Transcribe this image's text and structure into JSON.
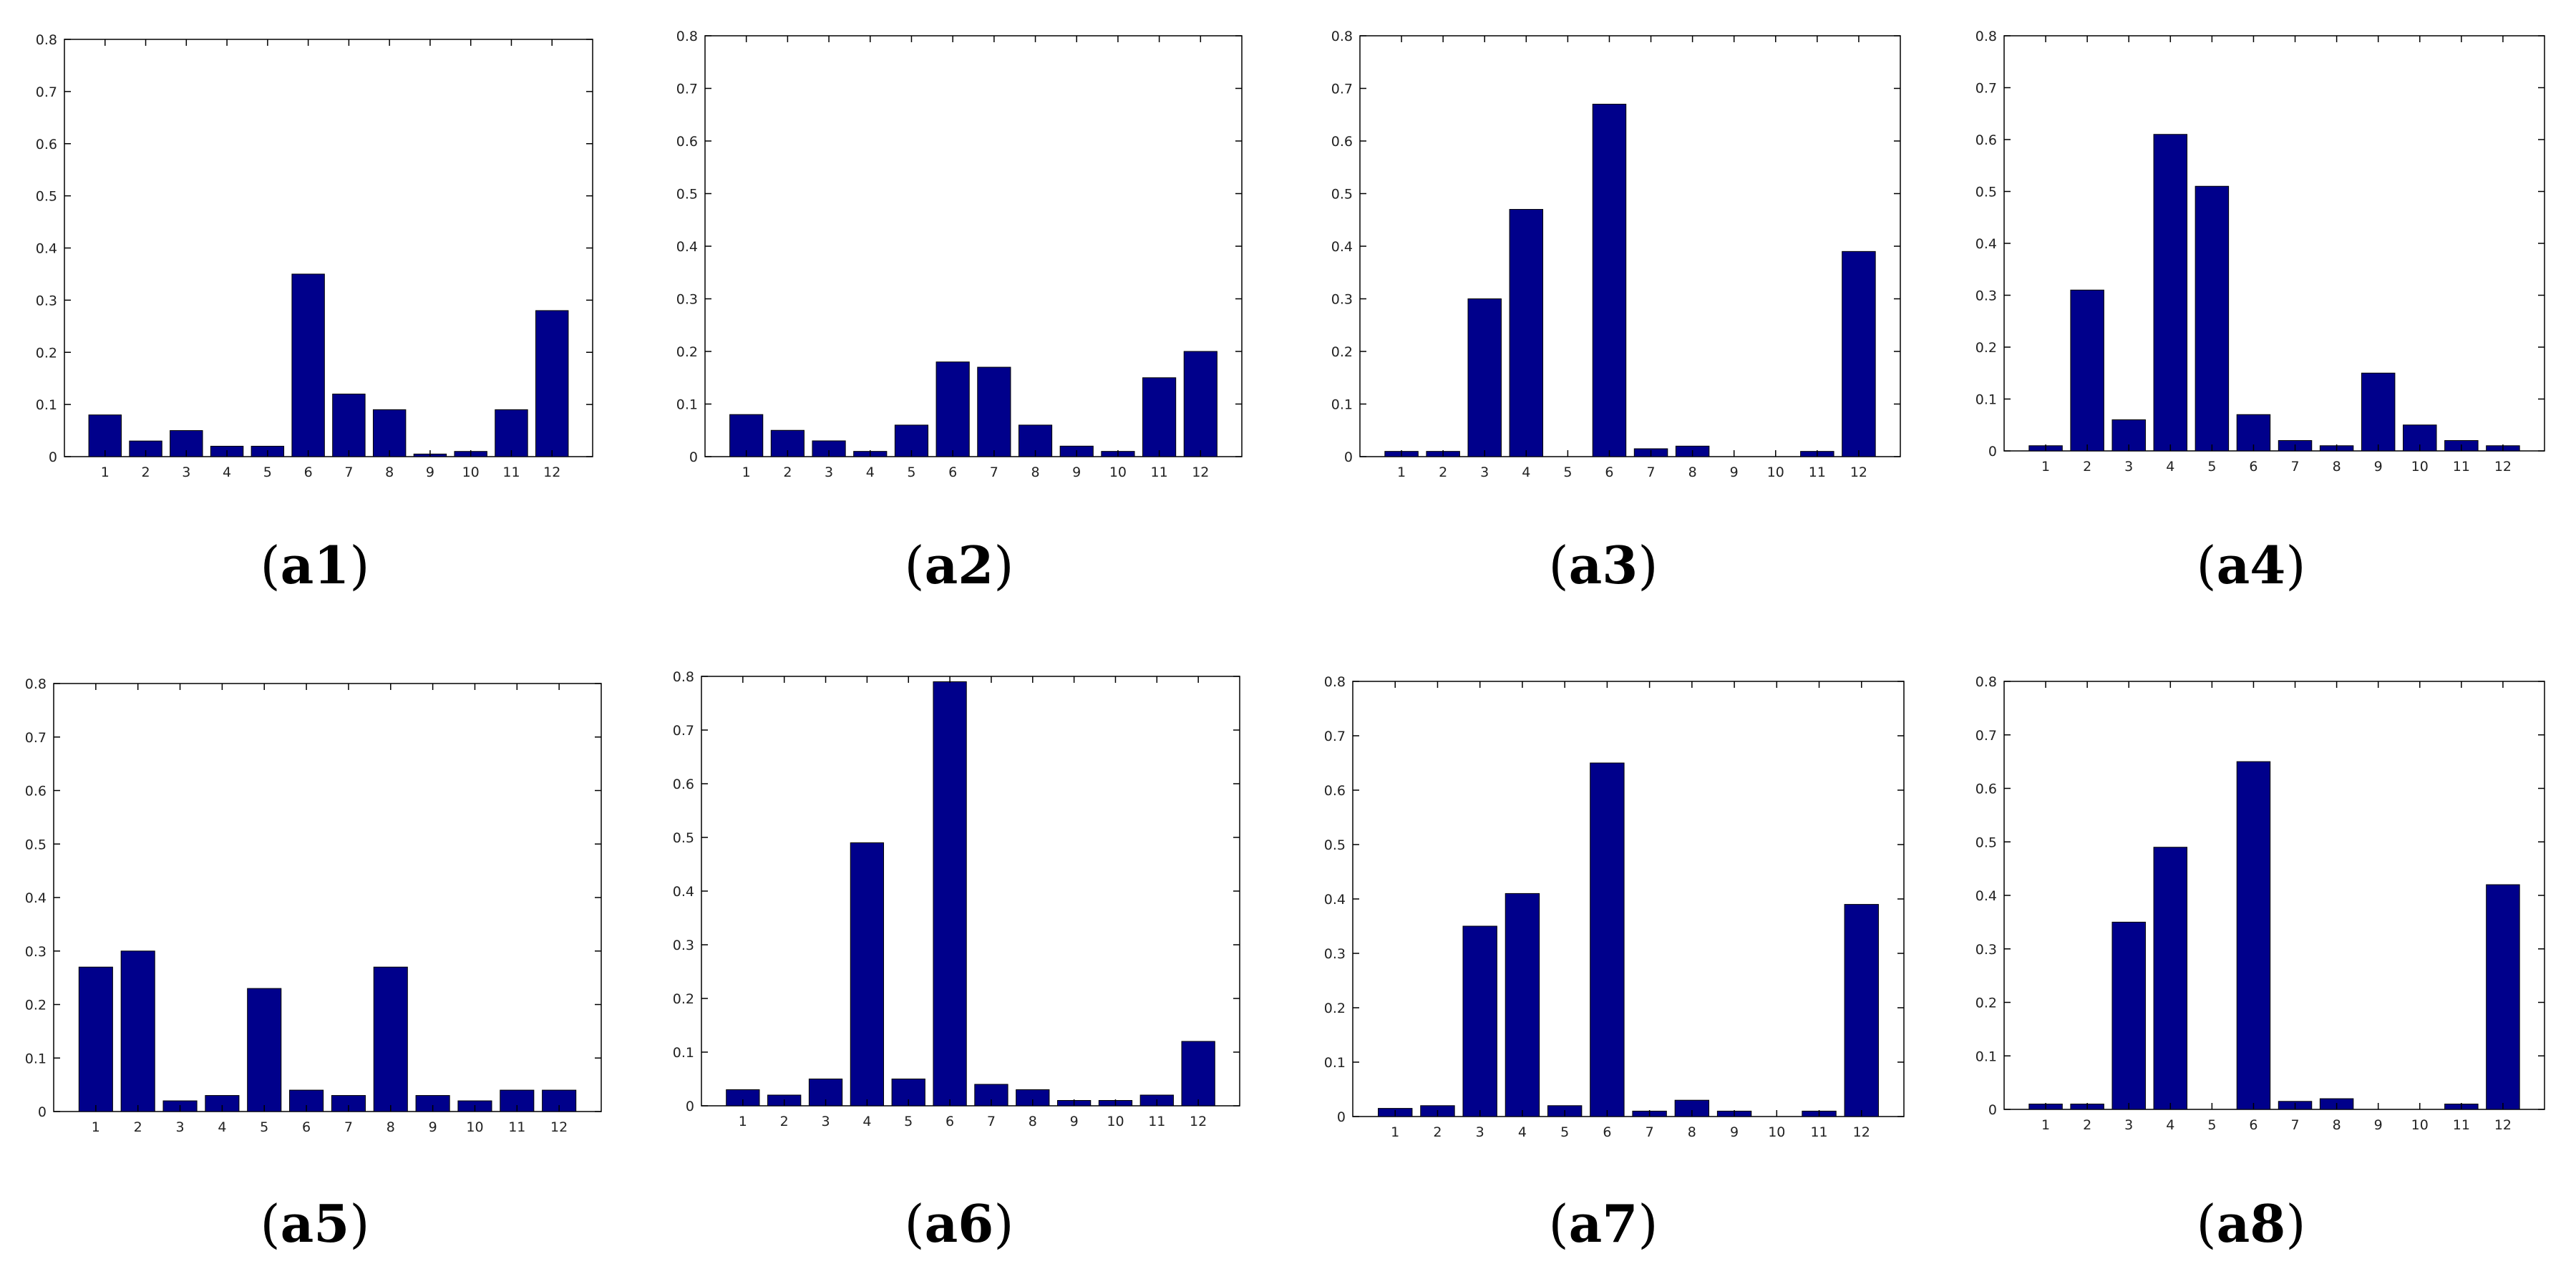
{
  "panels": [
    {
      "label": "a1",
      "chart_data": {
        "type": "bar",
        "categories": [
          "1",
          "2",
          "3",
          "4",
          "5",
          "6",
          "7",
          "8",
          "9",
          "10",
          "11",
          "12"
        ],
        "values": [
          0.08,
          0.03,
          0.05,
          0.02,
          0.02,
          0.35,
          0.12,
          0.09,
          0.005,
          0.01,
          0.09,
          0.28
        ],
        "ylim": [
          0,
          0.8
        ],
        "yticks": [
          "0",
          "0.1",
          "0.2",
          "0.3",
          "0.4",
          "0.5",
          "0.6",
          "0.7",
          "0.8"
        ],
        "bar_color": "#00008b",
        "grid": false
      }
    },
    {
      "label": "a2",
      "chart_data": {
        "type": "bar",
        "categories": [
          "1",
          "2",
          "3",
          "4",
          "5",
          "6",
          "7",
          "8",
          "9",
          "10",
          "11",
          "12"
        ],
        "values": [
          0.08,
          0.05,
          0.03,
          0.01,
          0.06,
          0.18,
          0.17,
          0.06,
          0.02,
          0.01,
          0.15,
          0.2
        ],
        "ylim": [
          0,
          0.8
        ],
        "yticks": [
          "0",
          "0.1",
          "0.2",
          "0.3",
          "0.4",
          "0.5",
          "0.6",
          "0.7",
          "0.8"
        ],
        "bar_color": "#00008b",
        "grid": false
      }
    },
    {
      "label": "a3",
      "chart_data": {
        "type": "bar",
        "categories": [
          "1",
          "2",
          "3",
          "4",
          "5",
          "6",
          "7",
          "8",
          "9",
          "10",
          "11",
          "12"
        ],
        "values": [
          0.01,
          0.01,
          0.3,
          0.47,
          0,
          0.67,
          0.015,
          0.02,
          0,
          0,
          0.01,
          0.39
        ],
        "ylim": [
          0,
          0.8
        ],
        "yticks": [
          "0",
          "0.1",
          "0.2",
          "0.3",
          "0.4",
          "0.5",
          "0.6",
          "0.7",
          "0.8"
        ],
        "bar_color": "#00008b",
        "grid": false
      }
    },
    {
      "label": "a4",
      "chart_data": {
        "type": "bar",
        "categories": [
          "1",
          "2",
          "3",
          "4",
          "5",
          "6",
          "7",
          "8",
          "9",
          "10",
          "11",
          "12"
        ],
        "values": [
          0.01,
          0.31,
          0.06,
          0.61,
          0.51,
          0.07,
          0.02,
          0.01,
          0.15,
          0.05,
          0.02,
          0.01
        ],
        "ylim": [
          0,
          0.8
        ],
        "yticks": [
          "0",
          "0.1",
          "0.2",
          "0.3",
          "0.4",
          "0.5",
          "0.6",
          "0.7",
          "0.8"
        ],
        "bar_color": "#00008b",
        "grid": false
      }
    },
    {
      "label": "a5",
      "chart_data": {
        "type": "bar",
        "categories": [
          "1",
          "2",
          "3",
          "4",
          "5",
          "6",
          "7",
          "8",
          "9",
          "10",
          "11",
          "12"
        ],
        "values": [
          0.27,
          0.3,
          0.02,
          0.03,
          0.23,
          0.04,
          0.03,
          0.27,
          0.03,
          0.02,
          0.04,
          0.04
        ],
        "ylim": [
          0,
          0.8
        ],
        "yticks": [
          "0",
          "0.1",
          "0.2",
          "0.3",
          "0.4",
          "0.5",
          "0.6",
          "0.7",
          "0.8"
        ],
        "bar_color": "#00008b",
        "grid": false
      }
    },
    {
      "label": "a6",
      "chart_data": {
        "type": "bar",
        "categories": [
          "1",
          "2",
          "3",
          "4",
          "5",
          "6",
          "7",
          "8",
          "9",
          "10",
          "11",
          "12"
        ],
        "values": [
          0.03,
          0.02,
          0.05,
          0.49,
          0.05,
          0.79,
          0.04,
          0.03,
          0.01,
          0.01,
          0.02,
          0.12
        ],
        "ylim": [
          0,
          0.8
        ],
        "yticks": [
          "0",
          "0.1",
          "0.2",
          "0.3",
          "0.4",
          "0.5",
          "0.6",
          "0.7",
          "0.8"
        ],
        "bar_color": "#00008b",
        "grid": false
      }
    },
    {
      "label": "a7",
      "chart_data": {
        "type": "bar",
        "categories": [
          "1",
          "2",
          "3",
          "4",
          "5",
          "6",
          "7",
          "8",
          "9",
          "10",
          "11",
          "12"
        ],
        "values": [
          0.015,
          0.02,
          0.35,
          0.41,
          0.02,
          0.65,
          0.01,
          0.03,
          0.01,
          0,
          0.01,
          0.39
        ],
        "ylim": [
          0,
          0.8
        ],
        "yticks": [
          "0",
          "0.1",
          "0.2",
          "0.3",
          "0.4",
          "0.5",
          "0.6",
          "0.7",
          "0.8"
        ],
        "bar_color": "#00008b",
        "grid": false
      }
    },
    {
      "label": "a8",
      "chart_data": {
        "type": "bar",
        "categories": [
          "1",
          "2",
          "3",
          "4",
          "5",
          "6",
          "7",
          "8",
          "9",
          "10",
          "11",
          "12"
        ],
        "values": [
          0.01,
          0.01,
          0.35,
          0.49,
          0,
          0.65,
          0.015,
          0.02,
          0,
          0,
          0.01,
          0.42
        ],
        "ylim": [
          0,
          0.8
        ],
        "yticks": [
          "0",
          "0.1",
          "0.2",
          "0.3",
          "0.4",
          "0.5",
          "0.6",
          "0.7",
          "0.8"
        ],
        "bar_color": "#00008b",
        "grid": false
      }
    }
  ]
}
